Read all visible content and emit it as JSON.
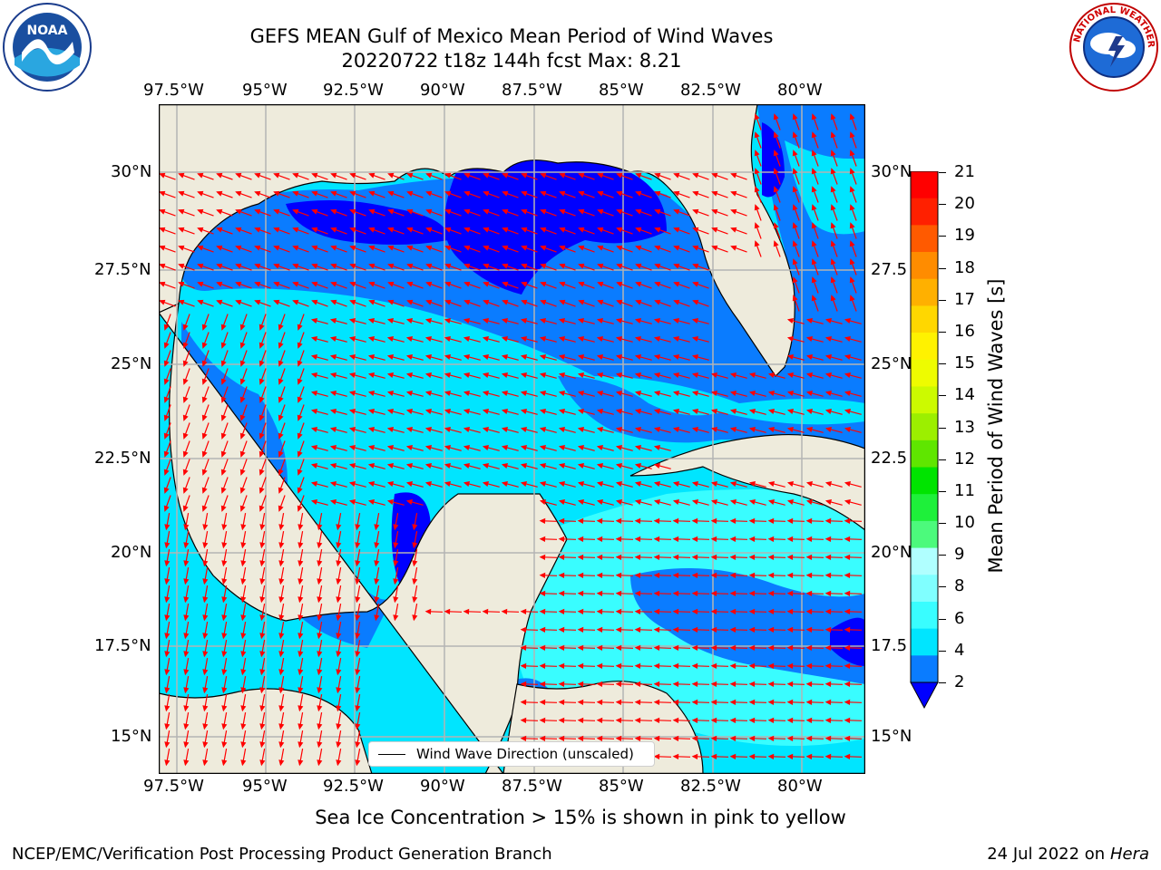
{
  "title_line1": "GEFS MEAN Gulf of Mexico Mean Period of Wind Waves",
  "title_line2": "20220722 t18z 144h fcst   Max: 8.21",
  "lon_labels": [
    "97.5°W",
    "95°W",
    "92.5°W",
    "90°W",
    "87.5°W",
    "85°W",
    "82.5°W",
    "80°W"
  ],
  "lat_labels": [
    "30°N",
    "27.5°N",
    "25°N",
    "22.5°N",
    "20°N",
    "17.5°N",
    "15°N"
  ],
  "colorbar": {
    "label": "Mean Period of Wind Waves [s]",
    "ticks": [
      "2",
      "4",
      "6",
      "8",
      "9",
      "10",
      "11",
      "12",
      "13",
      "14",
      "15",
      "16",
      "17",
      "18",
      "19",
      "20",
      "21"
    ],
    "colors": [
      "#0a7cff",
      "#00e5ff",
      "#39fdff",
      "#80ffff",
      "#b0ffff",
      "#4cfa7c",
      "#1ef03a",
      "#00e400",
      "#5fe600",
      "#9cef00",
      "#ccfa00",
      "#eefc00",
      "#fff200",
      "#ffd700",
      "#ffb000",
      "#ff8c00",
      "#ff5a00",
      "#ff2000",
      "#ff0000"
    ],
    "extend_color": "#0000ff"
  },
  "legend_label": "Wind Wave Direction (unscaled)",
  "note": "Sea Ice Concentration > 15% is shown in pink to yellow",
  "footer_left": "NCEP/EMC/Verification Post Processing Product Generation Branch",
  "footer_right_date": "24 Jul 2022 on ",
  "footer_right_host": "Hera",
  "logos": {
    "left_text": "NOAA",
    "right_text": "NATIONAL WEATHER SERVICE"
  },
  "colors": {
    "land": "#eeebdc",
    "grid": "#b4b4b4",
    "arrow": "#ff0000",
    "coast": "#000000"
  }
}
